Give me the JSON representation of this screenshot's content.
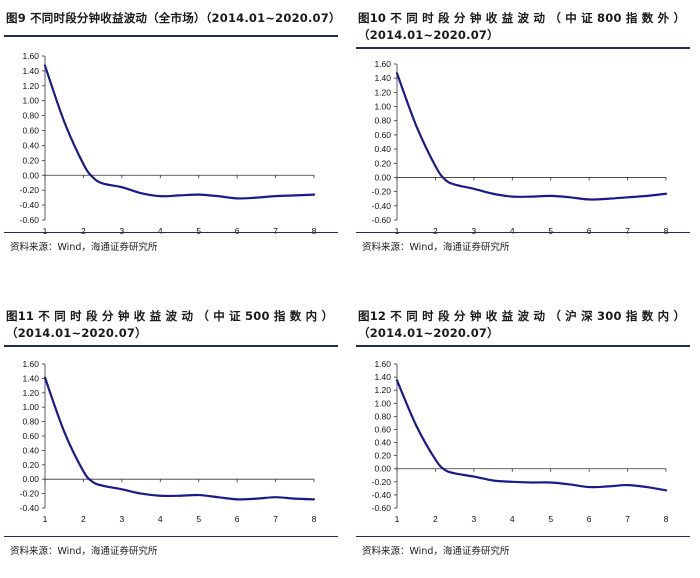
{
  "panels": [
    {
      "title_lines": [
        "图9  不同时段分钟收益波动（全市场）（2014.01~2020.07）"
      ],
      "source": "资料来源：Wind，海通证券研究所"
    },
    {
      "title_lines": [
        "图10 不 同 时 段 分 钟 收 益 波 动 （ 中 证  800  指 数 外 ）",
        "（2014.01~2020.07）"
      ],
      "source": "资料来源：Wind，海通证券研究所"
    },
    {
      "title_lines": [
        "图11 不 同 时 段 分 钟 收 益 波 动 （ 中 证  500  指 数 内 ）",
        "（2014.01~2020.07）"
      ],
      "source": "资料来源：Wind，海通证券研究所"
    },
    {
      "title_lines": [
        "图12 不 同 时 段 分 钟 收 益 波 动 （ 沪 深  300  指 数 内 ）",
        "（2014.01~2020.07）"
      ],
      "source": "资料来源：Wind，海通证券研究所"
    }
  ],
  "chart_data": [
    {
      "type": "line",
      "title": "图9  不同时段分钟收益波动（全市场）（2014.01~2020.07）",
      "x_ticks": [
        "1",
        "2",
        "3",
        "4",
        "5",
        "6",
        "7",
        "8"
      ],
      "y_ticks": [
        "1.60",
        "1.40",
        "1.20",
        "1.00",
        "0.80",
        "0.60",
        "0.40",
        "0.20",
        "0.00",
        "-0.20",
        "-0.40",
        "-0.60"
      ],
      "ylim": [
        -0.6,
        1.6
      ],
      "xlim": [
        1,
        8
      ],
      "color": "#1a1a8c",
      "series": [
        {
          "name": "波动",
          "x": [
            1,
            1.5,
            2,
            2.25,
            2.5,
            3,
            3.5,
            4,
            4.5,
            5,
            5.5,
            6,
            6.5,
            7,
            7.5,
            8
          ],
          "y": [
            1.47,
            0.72,
            0.15,
            -0.03,
            -0.11,
            -0.16,
            -0.24,
            -0.28,
            -0.27,
            -0.26,
            -0.28,
            -0.31,
            -0.3,
            -0.28,
            -0.27,
            -0.26
          ]
        }
      ]
    },
    {
      "type": "line",
      "title": "图10 不同时段分钟收益波动（中证 800 指数外）（2014.01~2020.07）",
      "x_ticks": [
        "1",
        "2",
        "3",
        "4",
        "5",
        "6",
        "7",
        "8"
      ],
      "y_ticks": [
        "1.60",
        "1.40",
        "1.20",
        "1.00",
        "0.80",
        "0.60",
        "0.40",
        "0.20",
        "0.00",
        "-0.20",
        "-0.40",
        "-0.60"
      ],
      "ylim": [
        -0.6,
        1.6
      ],
      "xlim": [
        1,
        8
      ],
      "color": "#1a1a8c",
      "series": [
        {
          "name": "波动",
          "x": [
            1,
            1.5,
            2,
            2.25,
            2.5,
            3,
            3.5,
            4,
            4.5,
            5,
            5.5,
            6,
            6.5,
            7,
            7.5,
            8
          ],
          "y": [
            1.47,
            0.73,
            0.16,
            -0.03,
            -0.1,
            -0.16,
            -0.23,
            -0.27,
            -0.27,
            -0.26,
            -0.28,
            -0.31,
            -0.3,
            -0.28,
            -0.26,
            -0.23
          ]
        }
      ]
    },
    {
      "type": "line",
      "title": "图11 不同时段分钟收益波动（中证 500 指数内）（2014.01~2020.07）",
      "x_ticks": [
        "1",
        "2",
        "3",
        "4",
        "5",
        "6",
        "7",
        "8"
      ],
      "y_ticks": [
        "1.60",
        "1.40",
        "1.20",
        "1.00",
        "0.80",
        "0.60",
        "0.40",
        "0.20",
        "0.00",
        "-0.20",
        "-0.40"
      ],
      "ylim": [
        -0.4,
        1.6
      ],
      "xlim": [
        1,
        8
      ],
      "color": "#1a1a8c",
      "series": [
        {
          "name": "波动",
          "x": [
            1,
            1.5,
            2,
            2.25,
            2.5,
            3,
            3.5,
            4,
            4.5,
            5,
            5.5,
            6,
            6.5,
            7,
            7.5,
            8
          ],
          "y": [
            1.41,
            0.66,
            0.11,
            -0.04,
            -0.09,
            -0.14,
            -0.2,
            -0.23,
            -0.23,
            -0.22,
            -0.25,
            -0.28,
            -0.27,
            -0.25,
            -0.27,
            -0.28
          ]
        }
      ]
    },
    {
      "type": "line",
      "title": "图12 不同时段分钟收益波动（沪深 300 指数内）（2014.01~2020.07）",
      "x_ticks": [
        "1",
        "2",
        "3",
        "4",
        "5",
        "6",
        "7",
        "8"
      ],
      "y_ticks": [
        "1.60",
        "1.40",
        "1.20",
        "1.00",
        "0.80",
        "0.60",
        "0.40",
        "0.20",
        "0.00",
        "-0.20",
        "-0.40",
        "-0.60"
      ],
      "ylim": [
        -0.6,
        1.6
      ],
      "xlim": [
        1,
        8
      ],
      "color": "#1a1a8c",
      "series": [
        {
          "name": "波动",
          "x": [
            1,
            1.5,
            2,
            2.25,
            2.5,
            3,
            3.5,
            4,
            4.5,
            5,
            5.5,
            6,
            6.5,
            7,
            7.5,
            8
          ],
          "y": [
            1.35,
            0.66,
            0.14,
            -0.02,
            -0.07,
            -0.12,
            -0.18,
            -0.2,
            -0.21,
            -0.21,
            -0.24,
            -0.28,
            -0.27,
            -0.25,
            -0.28,
            -0.33
          ]
        }
      ]
    }
  ]
}
